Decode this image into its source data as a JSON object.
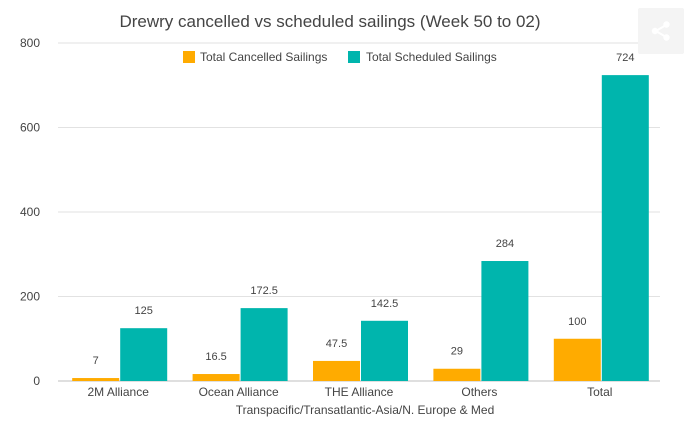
{
  "share": {
    "icon": "share-icon"
  },
  "chart_data": {
    "type": "bar",
    "title": "Drewry cancelled vs scheduled sailings (Week 50 to 02)",
    "xlabel": "Transpacific/Transatlantic-Asia/N. Europe & Med",
    "ylabel": "",
    "ylim": [
      0,
      800
    ],
    "yticks": [
      0,
      200,
      400,
      600,
      800
    ],
    "grid": true,
    "legend_position": "top-center",
    "categories": [
      "2M Alliance",
      "Ocean Alliance",
      "THE Alliance",
      "Others",
      "Total"
    ],
    "series": [
      {
        "name": "Total Cancelled Sailings",
        "color": "#ffab00",
        "values": [
          7,
          16.5,
          47.5,
          29,
          100
        ],
        "labels": [
          "7",
          "16.5",
          "47.5",
          "29",
          "100"
        ]
      },
      {
        "name": "Total Scheduled Sailings",
        "color": "#00b5ad",
        "values": [
          125,
          172.5,
          142.5,
          284,
          724
        ],
        "labels": [
          "125",
          "172.5",
          "142.5",
          "284",
          "724"
        ]
      }
    ]
  }
}
